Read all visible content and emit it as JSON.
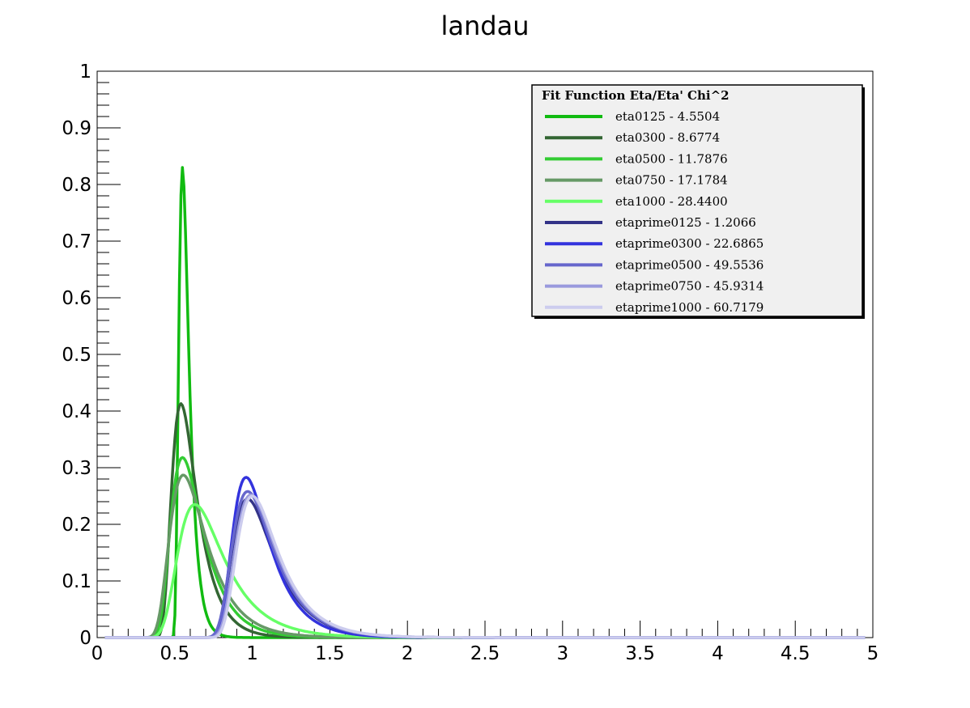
{
  "chart_data": {
    "type": "line",
    "title": "landau",
    "xlabel": "",
    "ylabel": "",
    "xlim": [
      0,
      5
    ],
    "ylim": [
      0,
      1
    ],
    "x_ticks": [
      "0",
      "0.5",
      "1",
      "1.5",
      "2",
      "2.5",
      "3",
      "3.5",
      "4",
      "4.5",
      "5"
    ],
    "y_ticks": [
      "0",
      "0.1",
      "0.2",
      "0.3",
      "0.4",
      "0.5",
      "0.6",
      "0.7",
      "0.8",
      "0.9",
      "1"
    ],
    "grid": false,
    "legend": {
      "placement": "top-right",
      "header": "Fit Function Eta/Eta' Chi^2"
    },
    "series": [
      {
        "name": "eta0125 - 4.5504",
        "color": "#11bb11",
        "mpv": 0.55,
        "peak": 0.83,
        "width": 0.022
      },
      {
        "name": "eta0300 - 8.6774",
        "color": "#336633",
        "mpv": 0.54,
        "peak": 0.413,
        "width": 0.055
      },
      {
        "name": "eta0500 - 11.7876",
        "color": "#33cc33",
        "mpv": 0.55,
        "peak": 0.318,
        "width": 0.07
      },
      {
        "name": "eta0750 - 17.1784",
        "color": "#669966",
        "mpv": 0.555,
        "peak": 0.287,
        "width": 0.08
      },
      {
        "name": "eta1000 - 28.4400",
        "color": "#66ff66",
        "mpv": 0.63,
        "peak": 0.235,
        "width": 0.1
      },
      {
        "name": "etaprime0125 - 1.2066",
        "color": "#333388",
        "mpv": 0.97,
        "peak": 0.245,
        "width": 0.09
      },
      {
        "name": "etaprime0300 - 22.6865",
        "color": "#3333dd",
        "mpv": 0.96,
        "peak": 0.283,
        "width": 0.08
      },
      {
        "name": "etaprime0500 - 49.5536",
        "color": "#6666cc",
        "mpv": 0.97,
        "peak": 0.258,
        "width": 0.09
      },
      {
        "name": "etaprime0750 - 45.9314",
        "color": "#9999dd",
        "mpv": 0.99,
        "peak": 0.252,
        "width": 0.09
      },
      {
        "name": "etaprime1000 - 60.7179",
        "color": "#ccccee",
        "mpv": 1.0,
        "peak": 0.25,
        "width": 0.09
      }
    ]
  }
}
